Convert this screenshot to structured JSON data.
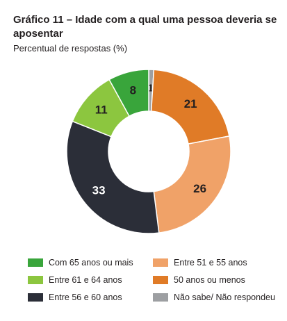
{
  "header": {
    "title": "Gráfico 11 – Idade com a qual uma pessoa deveria se aposentar",
    "subtitle": "Percentual de respostas (%)"
  },
  "chart_data": {
    "type": "pie",
    "donut": true,
    "start": "top",
    "direction": "clockwise",
    "slices": [
      {
        "label": "Não sabe/ Não respondeu",
        "value": 1,
        "display": "1",
        "color": "#9d9fa2"
      },
      {
        "label": "50 anos ou menos",
        "value": 21,
        "display": "21",
        "color": "#e07b27"
      },
      {
        "label": "Entre 51 e 55 anos",
        "value": 26,
        "display": "26",
        "color": "#f0a268"
      },
      {
        "label": "Entre 56 e 60 anos",
        "value": 33,
        "display": "33",
        "color": "#2b2e38"
      },
      {
        "label": "Entre 61 e 64 anos",
        "value": 11,
        "display": "11",
        "color": "#8cc63f"
      },
      {
        "label": "Com 65 anos ou mais",
        "value": 8,
        "display": "8",
        "color": "#39a53b"
      }
    ],
    "legend": {
      "placement": "bottom",
      "order": [
        5,
        2,
        4,
        1,
        3,
        0
      ]
    }
  }
}
